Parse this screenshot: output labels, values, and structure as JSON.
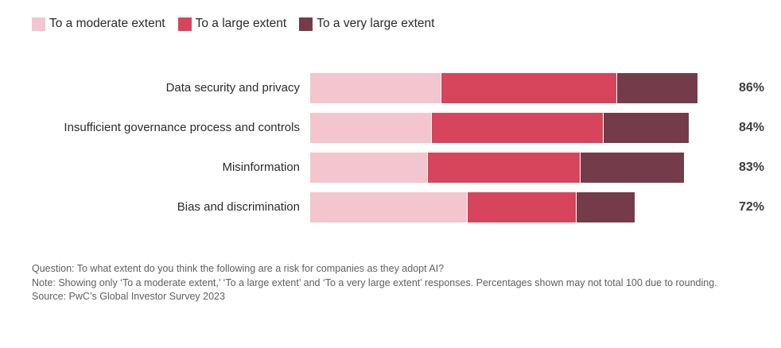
{
  "chart_data": {
    "type": "bar",
    "orientation": "horizontal",
    "stacked": true,
    "grid": false,
    "legend_position": "top-left",
    "xlim": [
      0,
      100
    ],
    "categories": [
      "Data security and privacy",
      "Insufficient governance process and controls",
      "Misinformation",
      "Bias and discrimination"
    ],
    "series": [
      {
        "name": "To a moderate extent",
        "color": "#f2c5cf",
        "values": [
          29,
          27,
          26,
          35
        ]
      },
      {
        "name": "To a large extent",
        "color": "#d6455c",
        "values": [
          39,
          38,
          34,
          24
        ]
      },
      {
        "name": "To a very large extent",
        "color": "#743b4a",
        "values": [
          18,
          19,
          23,
          13
        ]
      }
    ],
    "totals": [
      "86%",
      "84%",
      "83%",
      "72%"
    ]
  },
  "footer": {
    "question": "Question: To what extent do you think the following are a risk for companies as they adopt AI?",
    "note": "Note: Showing only ‘To a moderate extent,’ ‘To a large extent’ and ‘To a very large extent’ responses. Percentages shown may not total 100 due to rounding.",
    "source": "Source: PwC’s Global Investor Survey 2023"
  }
}
